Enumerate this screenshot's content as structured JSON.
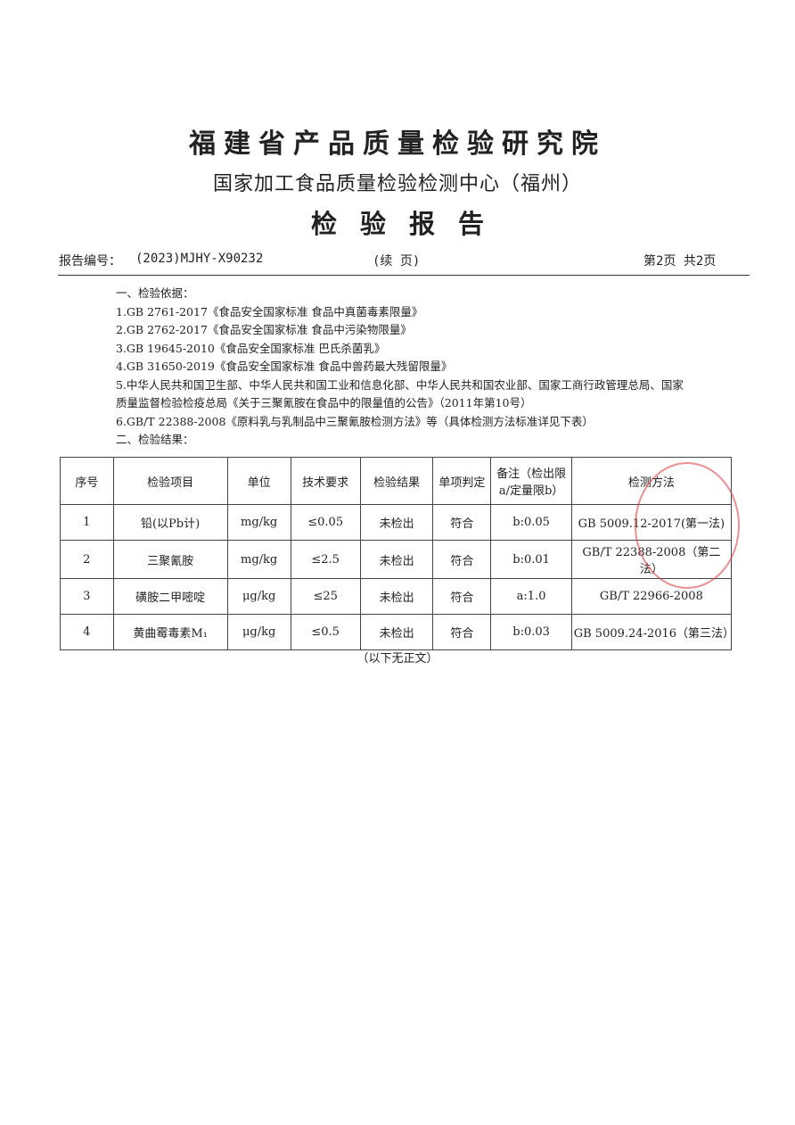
{
  "header": {
    "institute": "福建省产品质量检验研究院",
    "center": "国家加工食品质量检验检测中心（福州）",
    "title": "检验报告"
  },
  "report_info": {
    "number_label": "报告编号：",
    "number": "(2023)MJHY-X90232",
    "continued": "(续 页)",
    "page": "第2页  共2页"
  },
  "basis": {
    "heading": "一、检验依据：",
    "items": [
      "1.GB 2761-2017《食品安全国家标准 食品中真菌毒素限量》",
      "2.GB 2762-2017《食品安全国家标准 食品中污染物限量》",
      "3.GB 19645-2010《食品安全国家标准 巴氏杀菌乳》",
      "4.GB 31650-2019《食品安全国家标准 食品中兽药最大残留限量》",
      "5.中华人民共和国卫生部、中华人民共和国工业和信息化部、中华人民共和国农业部、国家工商行政管理总局、国家质量监督检验检疫总局《关于三聚氰胺在食品中的限量值的公告》（2011年第10号）",
      "6.GB/T 22388-2008《原料乳与乳制品中三聚氰胺检测方法》等（具体检测方法标准详见下表）"
    ]
  },
  "results": {
    "heading": "二、检验结果："
  },
  "table": {
    "headers": [
      "序号",
      "检验项目",
      "单位",
      "技术要求",
      "检验结果",
      "单项判定",
      "备注（检出限a/定量限b）",
      "检测方法"
    ],
    "rows": [
      [
        "1",
        "铅(以Pb计)",
        "mg/kg",
        "≤0.05",
        "未检出",
        "符合",
        "b:0.05",
        "GB 5009.12-2017(第一法)"
      ],
      [
        "2",
        "三聚氰胺",
        "mg/kg",
        "≤2.5",
        "未检出",
        "符合",
        "b:0.01",
        "GB/T 22388-2008（第二法）"
      ],
      [
        "3",
        "磺胺二甲嘧啶",
        "μg/kg",
        "≤25",
        "未检出",
        "符合",
        "a:1.0",
        "GB/T 22966-2008"
      ],
      [
        "4",
        "黄曲霉毒素M₁",
        "μg/kg",
        "≤0.5",
        "未检出",
        "符合",
        "b:0.03",
        "GB 5009.24-2016（第三法）"
      ]
    ]
  },
  "footer": "（以下无正文）"
}
